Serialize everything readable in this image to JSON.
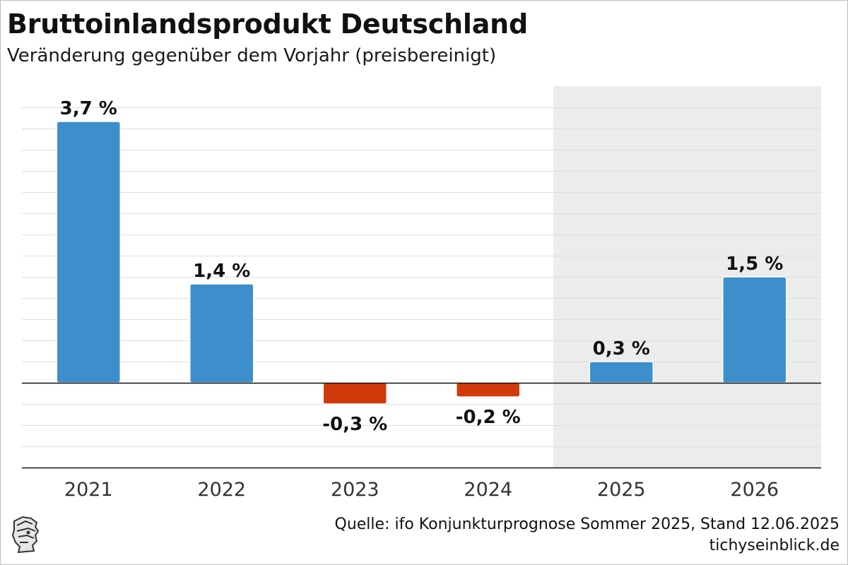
{
  "header": {
    "title": "Bruttoinlandsprodukt Deutschland",
    "subtitle": "Veränderung gegenüber dem Vorjahr (preisbereinigt)"
  },
  "footer": {
    "source": "Quelle: ifo Konjunkturprognose Sommer 2025, Stand 12.06.2025",
    "site": "tichyseinblick.de"
  },
  "colors": {
    "positive": "#3d8fcc",
    "negative": "#d03a0a",
    "forecast_shade": "#ececec",
    "grid": "#dedede",
    "axis": "#111111"
  },
  "chart_data": {
    "type": "bar",
    "title": "Bruttoinlandsprodukt Deutschland",
    "subtitle": "Veränderung gegenüber dem Vorjahr (preisbereinigt)",
    "categories": [
      "2021",
      "2022",
      "2023",
      "2024",
      "2025",
      "2026"
    ],
    "values": [
      3.7,
      1.4,
      -0.3,
      -0.2,
      0.3,
      1.5
    ],
    "labels": [
      "3,7 %",
      "1,4 %",
      "-0,3 %",
      "-0,2 %",
      "0,3 %",
      "1,5 %"
    ],
    "forecast_categories": [
      "2025",
      "2026"
    ],
    "ylim": [
      -1.2,
      4.2
    ],
    "grid": true,
    "xlabel": "",
    "ylabel": ""
  }
}
